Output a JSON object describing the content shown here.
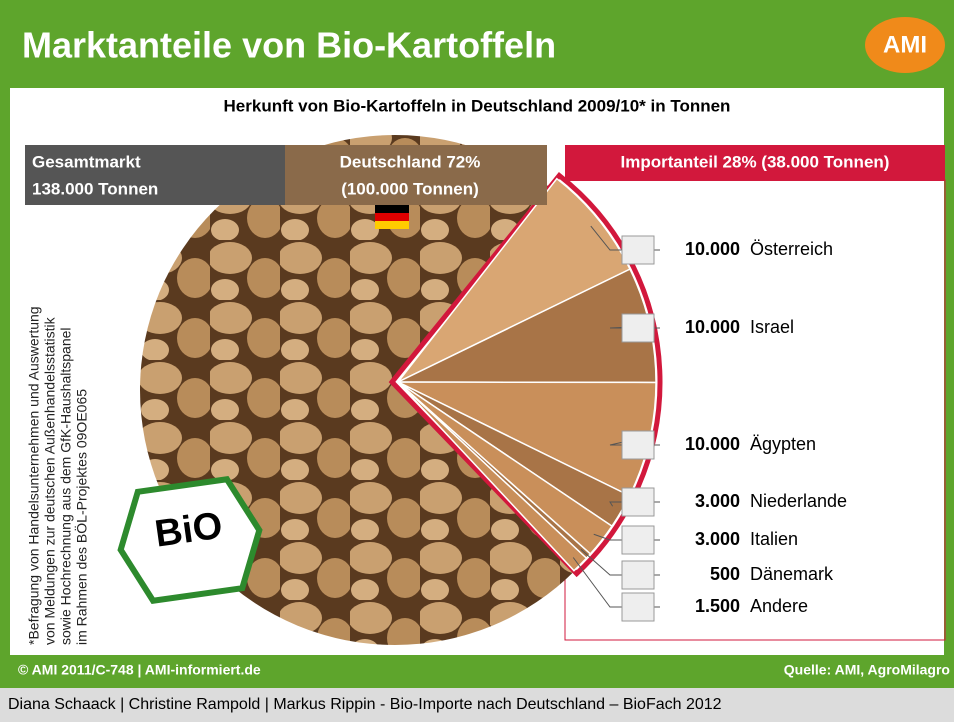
{
  "chart_data": {
    "type": "pie",
    "title": "Marktanteile von Bio-Kartoffeln",
    "logo": "AMI",
    "subtitle": "Herkunft von Bio-Kartoffeln in Deutschland 2009/10* in Tonnen",
    "total_label": [
      "Gesamtmarkt",
      "138.000 Tonnen"
    ],
    "main_label": [
      "Deutschland 72%",
      "(100.000 Tonnen)"
    ],
    "import_label": "Importanteil 28% (38.000 Tonnen)",
    "categories": [
      "Österreich",
      "Israel",
      "Ägypten",
      "Niederlande",
      "Italien",
      "Dänemark",
      "Andere"
    ],
    "values": [
      10000,
      10000,
      10000,
      3000,
      3000,
      500,
      1500
    ],
    "value_labels": [
      "10.000",
      "10.000",
      "10.000",
      "3.000",
      "3.000",
      "500",
      "1.500"
    ],
    "colors": [
      "#d9a673",
      "#a87447",
      "#c98f5a",
      "#a87447",
      "#c98f5a",
      "#a87447",
      "#c98f5a"
    ],
    "bio_logo": "BiO",
    "footnote": [
      "*Befragung von Handelsunternehmen und Auswertung",
      "von Meldungen zur deutschen Außenhandelsstatistik",
      "sowie Hochrechnung aus dem GfK-Haushaltspanel",
      "im Rahmen des BÖL-Projektes 09OE065"
    ],
    "copyright": "© AMI 2011/C-748 | AMI-informiert.de",
    "source": "Quelle: AMI, AgroMilagro",
    "caption": "Diana Schaack | Christine Rampold | Markus Rippin - Bio-Importe nach Deutschland – BioFach 2012"
  }
}
